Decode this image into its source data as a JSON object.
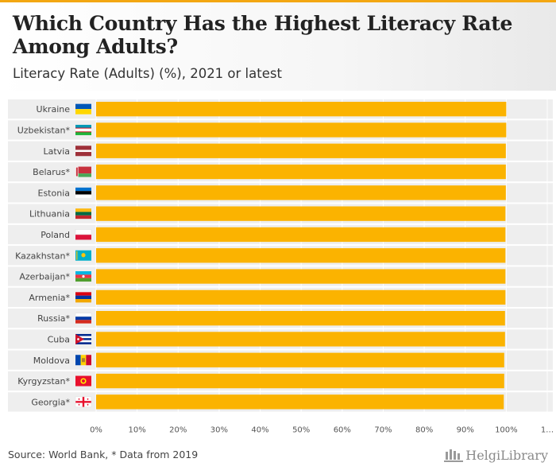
{
  "page": {
    "title": "Which Country Has the Highest Literacy Rate Among Adults?",
    "subtitle": "Literacy Rate (Adults) (%), 2021 or latest",
    "source": "Source: World Bank, * Data from 2019",
    "brand": "HelgiLibrary"
  },
  "colors": {
    "bar": "#fbb300",
    "row_band": "#eeeeee",
    "accent": "#f3a712"
  },
  "chart_data": {
    "type": "bar",
    "orientation": "horizontal",
    "categories": [
      "Ukraine",
      "Uzbekistan*",
      "Latvia",
      "Belarus*",
      "Estonia",
      "Lithuania",
      "Poland",
      "Kazakhstan*",
      "Azerbaijan*",
      "Armenia*",
      "Russia*",
      "Cuba",
      "Moldova",
      "Kyrgyzstan*",
      "Georgia*"
    ],
    "flags": [
      "ua",
      "uz",
      "lv",
      "by",
      "ee",
      "lt",
      "pl",
      "kz",
      "az",
      "am",
      "ru",
      "cu",
      "md",
      "kg",
      "ge"
    ],
    "values": [
      100.0,
      100.0,
      99.9,
      99.9,
      99.9,
      99.8,
      99.8,
      99.8,
      99.8,
      99.8,
      99.7,
      99.7,
      99.5,
      99.5,
      99.4
    ],
    "xlim": [
      0,
      110
    ],
    "xticks": [
      "0%",
      "10%",
      "20%",
      "30%",
      "40%",
      "50%",
      "60%",
      "70%",
      "80%",
      "90%",
      "100%",
      "1…"
    ],
    "grid": true,
    "legend": "none"
  }
}
